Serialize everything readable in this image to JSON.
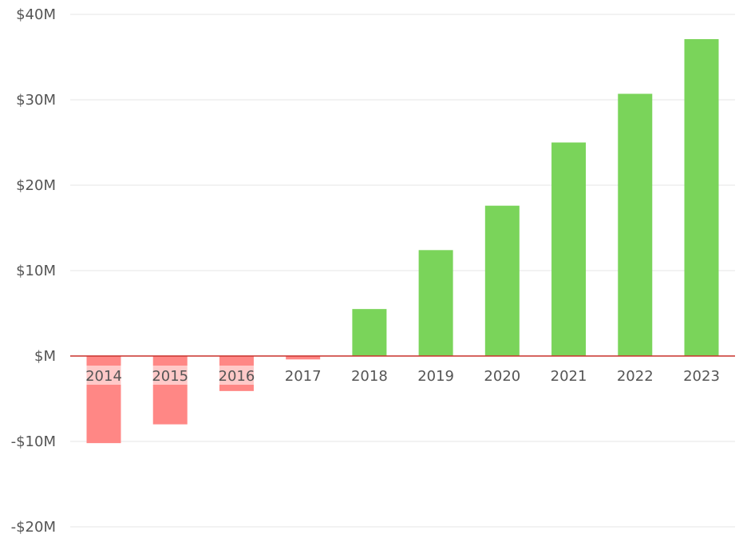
{
  "chart_data": {
    "type": "bar",
    "title": "",
    "xlabel": "",
    "ylabel": "",
    "categories": [
      "2014",
      "2015",
      "2016",
      "2017",
      "2018",
      "2019",
      "2020",
      "2021",
      "2022",
      "2023"
    ],
    "values": [
      -10.2,
      -8.0,
      -4.1,
      -0.4,
      5.5,
      12.4,
      17.6,
      25.0,
      30.7,
      37.1
    ],
    "ylim": [
      -20,
      40
    ],
    "yticks": [
      40,
      30,
      20,
      10,
      0,
      -10,
      -20
    ],
    "ytick_labels": [
      "$40M",
      "$30M",
      "$20M",
      "$10M",
      "$M",
      "-$10M",
      "-$20M"
    ],
    "grid": true,
    "legend": "none",
    "colors": {
      "positive": "#7ad45a",
      "negative": "#ff8785",
      "zero_line": "#c9302c",
      "grid": "#e6e6e6",
      "text": "#555555"
    }
  }
}
